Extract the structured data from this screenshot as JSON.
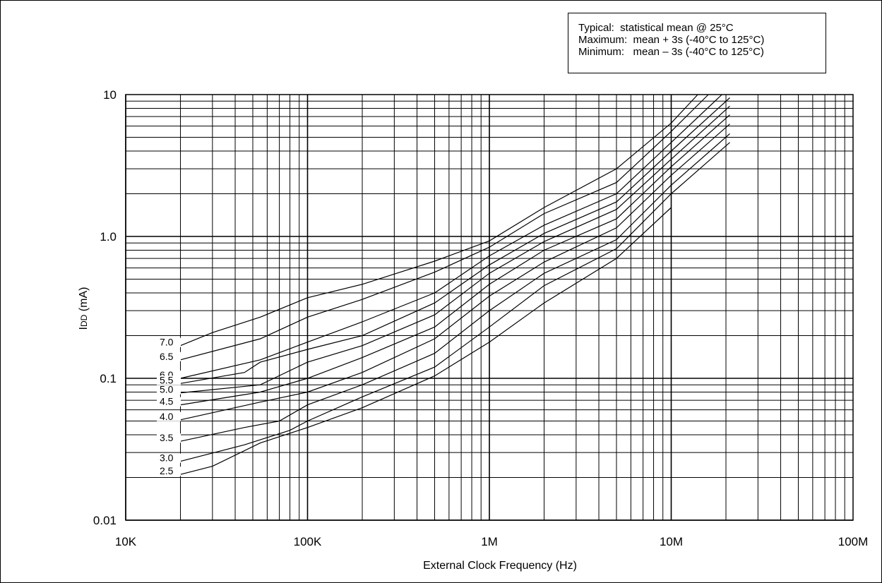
{
  "legend": {
    "line1": "Typical:  statistical mean @ 25°C",
    "line2": "Maximum:  mean + 3s (-40°C to 125°C)",
    "line3": "Minimum:   mean – 3s (-40°C to 125°C)"
  },
  "chart_data": {
    "type": "line",
    "title": "",
    "xlabel": "External Clock Frequency (Hz)",
    "ylabel_main": "I",
    "ylabel_sub": "DD",
    "ylabel_unit": " (mA)",
    "xscale": "log",
    "yscale": "log",
    "xlim": [
      10000,
      100000000
    ],
    "ylim": [
      0.01,
      10
    ],
    "grid": true,
    "x_ticks": [
      {
        "value": 10000,
        "label": "10K"
      },
      {
        "value": 100000,
        "label": "100K"
      },
      {
        "value": 1000000,
        "label": "1M"
      },
      {
        "value": 10000000,
        "label": "10M"
      },
      {
        "value": 100000000,
        "label": "100M"
      }
    ],
    "y_ticks": [
      {
        "value": 0.01,
        "label": "0.01"
      },
      {
        "value": 0.1,
        "label": "0.1"
      },
      {
        "value": 1,
        "label": "1.0"
      },
      {
        "value": 10,
        "label": "10"
      }
    ],
    "series": [
      {
        "name": "7.0",
        "x": [
          20000,
          30000,
          55000,
          100000,
          200000,
          500000,
          1000000,
          2000000,
          5000000,
          10000000,
          14000000
        ],
        "y": [
          0.17,
          0.21,
          0.27,
          0.37,
          0.46,
          0.67,
          0.93,
          1.6,
          3.0,
          6.3,
          10
        ]
      },
      {
        "name": "6.5",
        "x": [
          20000,
          55000,
          100000,
          200000,
          500000,
          1000000,
          2000000,
          5000000,
          10000000,
          16000000
        ],
        "y": [
          0.135,
          0.19,
          0.27,
          0.36,
          0.56,
          0.84,
          1.45,
          2.4,
          5.5,
          10
        ]
      },
      {
        "name": "6.0",
        "x": [
          20000,
          55000,
          100000,
          200000,
          500000,
          1000000,
          2000000,
          5000000,
          10000000,
          19000000
        ],
        "y": [
          0.1,
          0.135,
          0.18,
          0.25,
          0.4,
          0.73,
          1.2,
          2.0,
          4.6,
          10
        ]
      },
      {
        "name": "5.5",
        "x": [
          20000,
          45000,
          55000,
          100000,
          200000,
          500000,
          1000000,
          2000000,
          5000000,
          10000000,
          21000000
        ],
        "y": [
          0.092,
          0.11,
          0.13,
          0.16,
          0.2,
          0.34,
          0.63,
          1.05,
          1.75,
          4.0,
          9.5
        ]
      },
      {
        "name": "5.0",
        "x": [
          20000,
          55000,
          100000,
          200000,
          500000,
          1000000,
          2000000,
          5000000,
          10000000,
          21000000
        ],
        "y": [
          0.079,
          0.09,
          0.13,
          0.17,
          0.28,
          0.55,
          0.92,
          1.55,
          3.5,
          8.3
        ]
      },
      {
        "name": "4.5",
        "x": [
          20000,
          55000,
          100000,
          200000,
          500000,
          1000000,
          2000000,
          5000000,
          10000000,
          21000000
        ],
        "y": [
          0.065,
          0.08,
          0.1,
          0.14,
          0.23,
          0.46,
          0.8,
          1.33,
          3.1,
          7.2
        ]
      },
      {
        "name": "4.0",
        "x": [
          20000,
          55000,
          100000,
          200000,
          500000,
          1000000,
          2000000,
          5000000,
          10000000,
          21000000
        ],
        "y": [
          0.051,
          0.068,
          0.08,
          0.11,
          0.19,
          0.38,
          0.66,
          1.15,
          2.7,
          6.2
        ]
      },
      {
        "name": "3.5",
        "x": [
          20000,
          45000,
          70000,
          100000,
          200000,
          500000,
          1000000,
          2000000,
          5000000,
          10000000,
          21000000
        ],
        "y": [
          0.036,
          0.045,
          0.05,
          0.065,
          0.09,
          0.15,
          0.3,
          0.55,
          0.95,
          2.3,
          5.3
        ]
      },
      {
        "name": "3.0",
        "x": [
          20000,
          45000,
          80000,
          100000,
          200000,
          500000,
          1000000,
          2000000,
          5000000,
          10000000,
          21000000
        ],
        "y": [
          0.026,
          0.034,
          0.043,
          0.05,
          0.074,
          0.12,
          0.23,
          0.45,
          0.82,
          2.0,
          4.6
        ]
      },
      {
        "name": "2.5",
        "x": [
          20000,
          30000,
          55000,
          100000,
          200000,
          500000,
          1000000,
          2000000,
          5000000,
          10000000
        ],
        "y": [
          0.021,
          0.024,
          0.035,
          0.045,
          0.062,
          0.104,
          0.18,
          0.34,
          0.7,
          1.6
        ]
      }
    ]
  }
}
